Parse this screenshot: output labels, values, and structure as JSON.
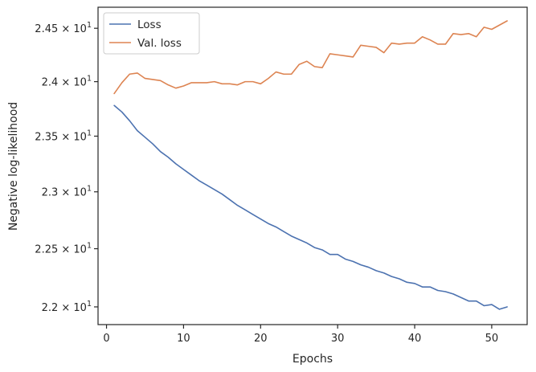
{
  "chart_data": {
    "type": "line",
    "xlabel": "Epochs",
    "ylabel": "Negative log-likelihood",
    "xlim": [
      -1.1,
      54.6
    ],
    "ylim": [
      21.85,
      24.7
    ],
    "yscale": "log",
    "grid": false,
    "legend_position": "top-left",
    "x_ticks": [
      {
        "value": 0,
        "label": "0"
      },
      {
        "value": 10,
        "label": "10"
      },
      {
        "value": 20,
        "label": "20"
      },
      {
        "value": 30,
        "label": "30"
      },
      {
        "value": 40,
        "label": "40"
      },
      {
        "value": 50,
        "label": "50"
      }
    ],
    "y_ticks": [
      {
        "value": 22.0,
        "mantissa": "2.2",
        "sep": " × 10",
        "exp": "1"
      },
      {
        "value": 22.5,
        "mantissa": "2.25",
        "sep": " × 10",
        "exp": "1"
      },
      {
        "value": 23.0,
        "mantissa": "2.3",
        "sep": " × 10",
        "exp": "1"
      },
      {
        "value": 23.5,
        "mantissa": "2.35",
        "sep": " × 10",
        "exp": "1"
      },
      {
        "value": 24.0,
        "mantissa": "2.4",
        "sep": " × 10",
        "exp": "1"
      },
      {
        "value": 24.5,
        "mantissa": "2.45",
        "sep": " × 10",
        "exp": "1"
      }
    ],
    "x": [
      1,
      2,
      3,
      4,
      5,
      6,
      7,
      8,
      9,
      10,
      11,
      12,
      13,
      14,
      15,
      16,
      17,
      18,
      19,
      20,
      21,
      22,
      23,
      24,
      25,
      26,
      27,
      28,
      29,
      30,
      31,
      32,
      33,
      34,
      35,
      36,
      37,
      38,
      39,
      40,
      41,
      42,
      43,
      44,
      45,
      46,
      47,
      48,
      49,
      50,
      51,
      52
    ],
    "series": [
      {
        "name": "Loss",
        "color": "#4c72b0",
        "values": [
          23.78,
          23.72,
          23.64,
          23.55,
          23.49,
          23.43,
          23.36,
          23.31,
          23.25,
          23.2,
          23.15,
          23.1,
          23.06,
          23.02,
          22.98,
          22.93,
          22.88,
          22.84,
          22.8,
          22.76,
          22.72,
          22.69,
          22.65,
          22.61,
          22.58,
          22.55,
          22.51,
          22.49,
          22.45,
          22.45,
          22.41,
          22.39,
          22.36,
          22.34,
          22.31,
          22.29,
          22.26,
          22.24,
          22.21,
          22.2,
          22.17,
          22.17,
          22.14,
          22.13,
          22.11,
          22.08,
          22.05,
          22.05,
          22.01,
          22.02,
          21.98,
          22.0
        ]
      },
      {
        "name": "Val. loss",
        "color": "#dd8452",
        "values": [
          23.89,
          23.99,
          24.07,
          24.08,
          24.03,
          24.02,
          24.01,
          23.97,
          23.94,
          23.96,
          23.99,
          23.99,
          23.99,
          24.0,
          23.98,
          23.98,
          23.97,
          24.0,
          24.0,
          23.98,
          24.03,
          24.09,
          24.07,
          24.07,
          24.16,
          24.19,
          24.14,
          24.13,
          24.26,
          24.25,
          24.24,
          24.23,
          24.34,
          24.33,
          24.32,
          24.27,
          24.36,
          24.35,
          24.36,
          24.36,
          24.42,
          24.39,
          24.35,
          24.35,
          24.45,
          24.44,
          24.45,
          24.42,
          24.51,
          24.49,
          24.53,
          24.57
        ]
      }
    ]
  }
}
